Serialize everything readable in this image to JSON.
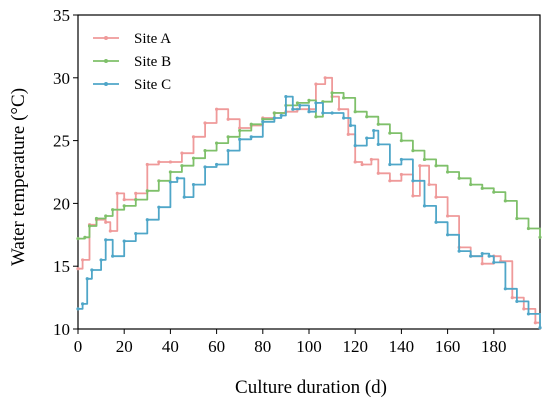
{
  "chart_data": {
    "type": "line",
    "xlabel": "Culture duration (d)",
    "ylabel": "Water temperature (°C)",
    "xlim": [
      0,
      200
    ],
    "ylim": [
      10,
      35
    ],
    "xticks": [
      0,
      20,
      40,
      60,
      80,
      100,
      120,
      140,
      160,
      180
    ],
    "yticks": [
      10,
      15,
      20,
      25,
      30,
      35
    ],
    "grid": false,
    "legend_position": "top-left",
    "series": [
      {
        "name": "Site A",
        "color": "#ef9a9a",
        "x": [
          0,
          2,
          5,
          8,
          12,
          14,
          17,
          20,
          25,
          30,
          35,
          40,
          45,
          50,
          55,
          60,
          65,
          70,
          75,
          80,
          85,
          90,
          95,
          100,
          103,
          107,
          110,
          113,
          117,
          120,
          123,
          127,
          130,
          135,
          140,
          145,
          148,
          152,
          155,
          160,
          165,
          170,
          175,
          180,
          183,
          188,
          193,
          198,
          200
        ],
        "y": [
          14.8,
          15.5,
          18.3,
          18.7,
          18.5,
          17.8,
          20.8,
          20.3,
          20.8,
          23.1,
          23.3,
          23.3,
          24.0,
          25.3,
          26.4,
          27.5,
          26.7,
          26.0,
          26.2,
          26.8,
          27.2,
          27.3,
          27.5,
          27.5,
          29.5,
          30.0,
          28.5,
          27.5,
          25.5,
          23.3,
          23.1,
          23.5,
          22.4,
          21.8,
          22.3,
          20.6,
          23.0,
          21.5,
          20.5,
          19.0,
          16.5,
          15.8,
          15.2,
          15.8,
          15.4,
          12.5,
          11.6,
          10.5,
          10.1
        ]
      },
      {
        "name": "Site B",
        "color": "#7fc06a",
        "x": [
          0,
          3,
          5,
          8,
          12,
          15,
          20,
          25,
          30,
          35,
          40,
          45,
          50,
          55,
          60,
          65,
          70,
          75,
          80,
          85,
          90,
          95,
          100,
          103,
          106,
          110,
          115,
          120,
          125,
          130,
          135,
          140,
          145,
          150,
          155,
          160,
          165,
          170,
          175,
          180,
          185,
          190,
          195,
          200
        ],
        "y": [
          17.2,
          17.3,
          18.2,
          18.8,
          19.0,
          19.5,
          19.8,
          20.3,
          21.0,
          21.8,
          22.5,
          23.0,
          23.6,
          24.2,
          24.8,
          25.3,
          25.8,
          26.3,
          26.7,
          27.2,
          27.8,
          28.0,
          28.2,
          26.9,
          28.1,
          28.8,
          28.4,
          27.3,
          26.9,
          26.3,
          25.6,
          25.0,
          24.2,
          23.5,
          23.0,
          22.5,
          22.0,
          21.5,
          21.2,
          20.9,
          20.2,
          18.8,
          18.0,
          17.3
        ]
      },
      {
        "name": "Site C",
        "color": "#4fa6c8",
        "x": [
          0,
          2,
          4,
          6,
          10,
          12,
          15,
          20,
          25,
          30,
          35,
          40,
          43,
          46,
          50,
          55,
          60,
          65,
          70,
          75,
          80,
          85,
          88,
          90,
          93,
          96,
          100,
          103,
          106,
          110,
          115,
          118,
          120,
          125,
          128,
          130,
          135,
          140,
          145,
          150,
          155,
          160,
          165,
          170,
          175,
          178,
          180,
          185,
          190,
          195,
          200
        ],
        "y": [
          11.6,
          12.0,
          14.0,
          14.7,
          15.5,
          17.1,
          15.8,
          17.0,
          17.6,
          18.7,
          19.7,
          21.7,
          22.0,
          20.5,
          21.5,
          22.9,
          23.1,
          24.2,
          25.1,
          25.3,
          26.5,
          26.8,
          27.0,
          28.5,
          27.5,
          27.8,
          27.3,
          28.0,
          27.2,
          27.2,
          26.8,
          26.2,
          24.6,
          25.2,
          25.8,
          24.7,
          23.1,
          23.5,
          21.8,
          19.8,
          18.5,
          17.5,
          16.2,
          15.8,
          16.0,
          15.8,
          15.3,
          13.2,
          12.2,
          11.2,
          10.1
        ]
      }
    ]
  }
}
